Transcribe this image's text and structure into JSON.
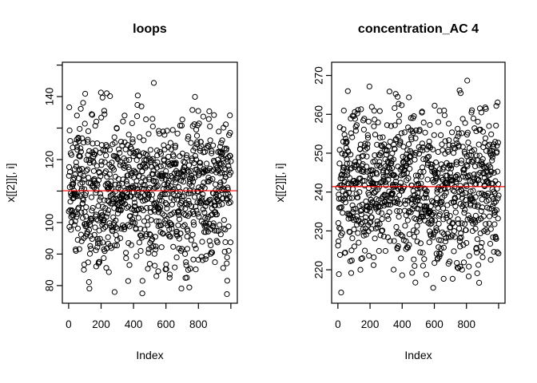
{
  "figure": {
    "background": "#ffffff",
    "foreground": "#000000"
  },
  "chart_data": [
    {
      "type": "scatter",
      "title": "loops",
      "xlabel": "Index",
      "ylabel": "x[[2]][, i]",
      "x": {
        "description": "index sequence 1..1000",
        "n_points": 1000,
        "min": 1,
        "max": 1000
      },
      "y_summary": {
        "mean": 110.1,
        "sd": 12.5,
        "min": 77.0,
        "max": 148.5
      },
      "xlim": [
        -39,
        1040
      ],
      "ylim": [
        74.4,
        150.9
      ],
      "xticks": [
        {
          "value": 0,
          "label": "0"
        },
        {
          "value": 200,
          "label": "200"
        },
        {
          "value": 400,
          "label": "400"
        },
        {
          "value": 600,
          "label": "600"
        },
        {
          "value": 800,
          "label": "800"
        },
        {
          "value": 1000,
          "label": null
        }
      ],
      "yticks": [
        {
          "value": 80,
          "label": "80"
        },
        {
          "value": 90,
          "label": "90"
        },
        {
          "value": 100,
          "label": "100"
        },
        {
          "value": 110,
          "label": null
        },
        {
          "value": 120,
          "label": "120"
        },
        {
          "value": 130,
          "label": null
        },
        {
          "value": 140,
          "label": "140"
        },
        {
          "value": 150,
          "label": null
        }
      ],
      "mean_line": {
        "value": 110.1,
        "color": "#ff0000"
      },
      "points_style": {
        "marker": "open-circle",
        "color": "#000000"
      },
      "grid": false,
      "legend": null,
      "seed": 101
    },
    {
      "type": "scatter",
      "title": "concentration_AC 4",
      "xlabel": "Index",
      "ylabel": "x[[2]][, i]",
      "x": {
        "description": "index sequence 1..1000",
        "n_points": 1000,
        "min": 1,
        "max": 1000
      },
      "y_summary": {
        "mean": 241.4,
        "sd": 10.0,
        "min": 213.7,
        "max": 271.2
      },
      "xlim": [
        -39,
        1040
      ],
      "ylim": [
        211.4,
        273.4
      ],
      "xticks": [
        {
          "value": 0,
          "label": "0"
        },
        {
          "value": 200,
          "label": "200"
        },
        {
          "value": 400,
          "label": "400"
        },
        {
          "value": 600,
          "label": "600"
        },
        {
          "value": 800,
          "label": "800"
        },
        {
          "value": 1000,
          "label": null
        }
      ],
      "yticks": [
        {
          "value": 220,
          "label": "220"
        },
        {
          "value": 230,
          "label": "230"
        },
        {
          "value": 240,
          "label": "240"
        },
        {
          "value": 250,
          "label": "250"
        },
        {
          "value": 260,
          "label": "260"
        },
        {
          "value": 270,
          "label": "270"
        }
      ],
      "mean_line": {
        "value": 241.4,
        "color": "#ff0000"
      },
      "points_style": {
        "marker": "open-circle",
        "color": "#000000"
      },
      "grid": false,
      "legend": null,
      "seed": 202
    }
  ]
}
